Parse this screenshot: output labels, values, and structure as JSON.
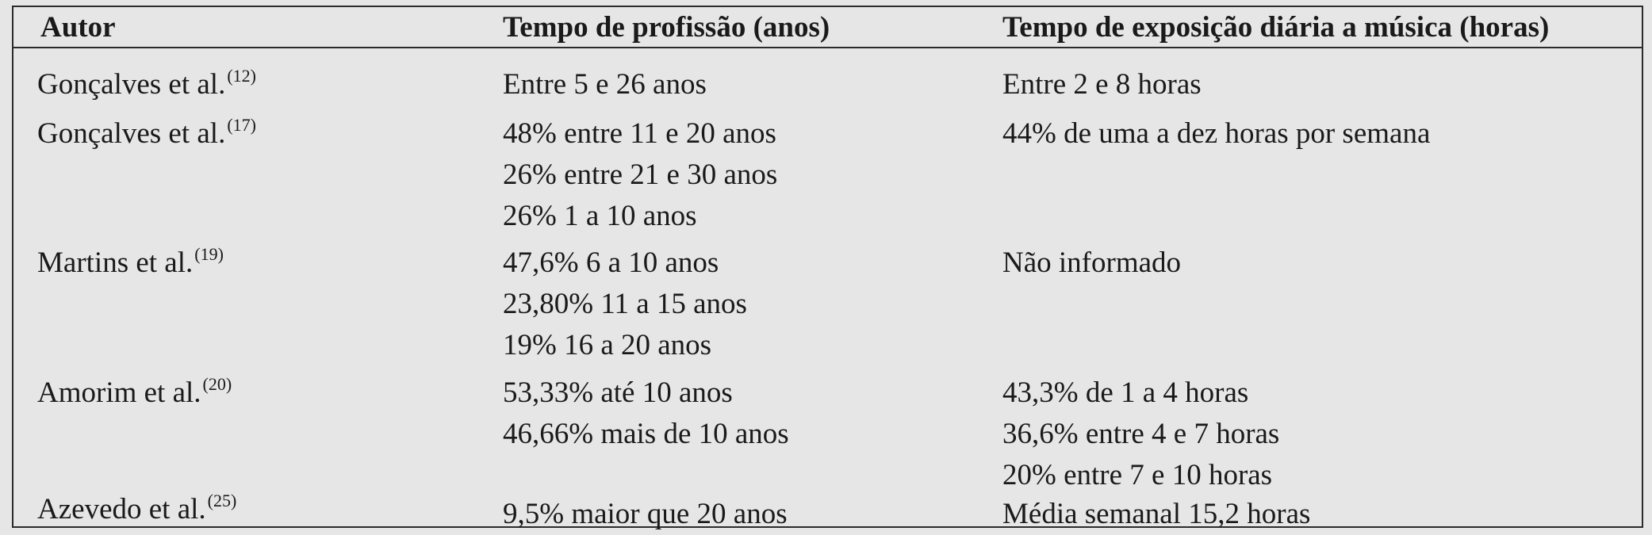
{
  "table": {
    "headers": {
      "author": "Autor",
      "profession_time": "Tempo de profissão (anos)",
      "exposure_time": "Tempo de exposição diária a música (horas)"
    },
    "rows": [
      {
        "author": "Gonçalves et al.",
        "ref": "(12)",
        "profession": [
          "Entre 5 e 26 anos"
        ],
        "exposure": [
          "Entre 2 e 8 horas"
        ]
      },
      {
        "author": "Gonçalves et al.",
        "ref": "(17)",
        "profession": [
          "48% entre 11 e 20 anos",
          "26% entre 21 e 30 anos",
          "26% 1 a 10 anos"
        ],
        "exposure": [
          "44% de uma a dez horas por semana"
        ]
      },
      {
        "author": "Martins et al.",
        "ref": "(19)",
        "profession": [
          "47,6% 6 a 10 anos",
          "23,80% 11 a 15 anos",
          "19% 16 a 20 anos"
        ],
        "exposure": [
          "Não informado"
        ]
      },
      {
        "author": "Amorim et al.",
        "ref": "(20)",
        "profession": [
          "53,33% até 10 anos",
          "46,66% mais de 10 anos"
        ],
        "exposure": [
          "43,3% de 1 a 4 horas",
          "36,6% entre 4 e 7 horas",
          "20% entre 7 e 10 horas"
        ]
      },
      {
        "author": "Azevedo et al.",
        "ref": "(25)",
        "profession": [
          "9,5% maior que 20 anos"
        ],
        "exposure": [
          "Média semanal 15,2 horas"
        ]
      }
    ]
  }
}
